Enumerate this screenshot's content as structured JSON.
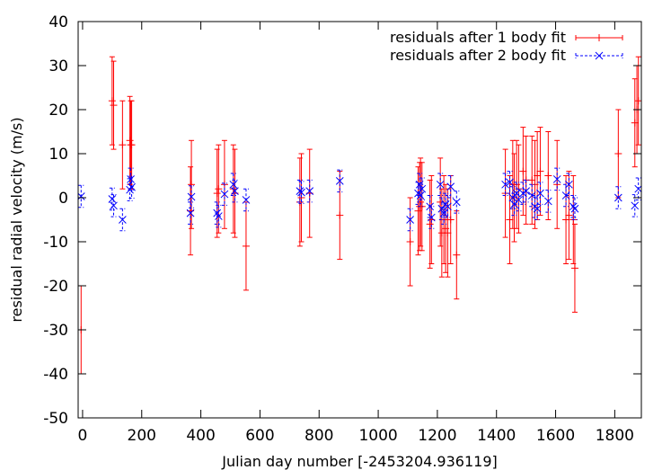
{
  "chart_data": {
    "type": "scatter",
    "title": "",
    "xlabel": "Julian day number [-2453204.936119]",
    "ylabel": "residual radial velocity (m/s)",
    "xlim": [
      -15,
      1890
    ],
    "ylim": [
      -50,
      40
    ],
    "xticks": [
      0,
      200,
      400,
      600,
      800,
      1000,
      1200,
      1400,
      1600,
      1800
    ],
    "yticks": [
      -50,
      -40,
      -30,
      -20,
      -10,
      0,
      10,
      20,
      30,
      40
    ],
    "grid": false,
    "legend_position": "top-right",
    "colors": {
      "series1": "#ff0000",
      "series2": "#0000ff",
      "axes": "#000000"
    },
    "series": [
      {
        "name": "residuals after 1 body fit",
        "marker": "+",
        "line_style": "solid",
        "points": [
          {
            "x": -5,
            "y": -30,
            "err": 10
          },
          {
            "x": 100,
            "y": 22,
            "err": 10
          },
          {
            "x": 105,
            "y": 21,
            "err": 10
          },
          {
            "x": 135,
            "y": 12,
            "err": 10
          },
          {
            "x": 160,
            "y": 13,
            "err": 10
          },
          {
            "x": 163,
            "y": 12,
            "err": 10
          },
          {
            "x": 166,
            "y": 12,
            "err": 10
          },
          {
            "x": 365,
            "y": -3,
            "err": 10
          },
          {
            "x": 368,
            "y": 3,
            "err": 10
          },
          {
            "x": 455,
            "y": 1,
            "err": 10
          },
          {
            "x": 460,
            "y": 2,
            "err": 10
          },
          {
            "x": 480,
            "y": 3,
            "err": 10
          },
          {
            "x": 510,
            "y": 2,
            "err": 10
          },
          {
            "x": 515,
            "y": 1,
            "err": 10
          },
          {
            "x": 553,
            "y": -11,
            "err": 10
          },
          {
            "x": 735,
            "y": -1,
            "err": 10
          },
          {
            "x": 740,
            "y": 0,
            "err": 10
          },
          {
            "x": 768,
            "y": 1,
            "err": 10
          },
          {
            "x": 870,
            "y": -4,
            "err": 10
          },
          {
            "x": 1108,
            "y": -10,
            "err": 10
          },
          {
            "x": 1135,
            "y": -3,
            "err": 10
          },
          {
            "x": 1140,
            "y": -2,
            "err": 10
          },
          {
            "x": 1143,
            "y": -1,
            "err": 10
          },
          {
            "x": 1148,
            "y": -2,
            "err": 10
          },
          {
            "x": 1175,
            "y": -6,
            "err": 10
          },
          {
            "x": 1180,
            "y": -5,
            "err": 10
          },
          {
            "x": 1210,
            "y": -1,
            "err": 10
          },
          {
            "x": 1215,
            "y": -8,
            "err": 10
          },
          {
            "x": 1222,
            "y": -5,
            "err": 10
          },
          {
            "x": 1228,
            "y": -7,
            "err": 10
          },
          {
            "x": 1235,
            "y": -8,
            "err": 10
          },
          {
            "x": 1245,
            "y": -5,
            "err": 10
          },
          {
            "x": 1265,
            "y": -13,
            "err": 10
          },
          {
            "x": 1430,
            "y": 1,
            "err": 10
          },
          {
            "x": 1445,
            "y": -5,
            "err": 10
          },
          {
            "x": 1455,
            "y": 3,
            "err": 10
          },
          {
            "x": 1460,
            "y": 0,
            "err": 10
          },
          {
            "x": 1468,
            "y": 3,
            "err": 10
          },
          {
            "x": 1475,
            "y": 2,
            "err": 10
          },
          {
            "x": 1490,
            "y": 6,
            "err": 10
          },
          {
            "x": 1500,
            "y": 4,
            "err": 10
          },
          {
            "x": 1520,
            "y": 4,
            "err": 10
          },
          {
            "x": 1530,
            "y": 3,
            "err": 10
          },
          {
            "x": 1538,
            "y": 5,
            "err": 10
          },
          {
            "x": 1548,
            "y": 6,
            "err": 10
          },
          {
            "x": 1575,
            "y": 5,
            "err": 10
          },
          {
            "x": 1605,
            "y": 3,
            "err": 10
          },
          {
            "x": 1635,
            "y": -5,
            "err": 10
          },
          {
            "x": 1645,
            "y": -4,
            "err": 10
          },
          {
            "x": 1660,
            "y": -5,
            "err": 10
          },
          {
            "x": 1665,
            "y": -16,
            "err": 10
          },
          {
            "x": 1812,
            "y": 10,
            "err": 10
          },
          {
            "x": 1868,
            "y": 17,
            "err": 10
          },
          {
            "x": 1875,
            "y": 20,
            "err": 10
          },
          {
            "x": 1880,
            "y": 22,
            "err": 10
          }
        ]
      },
      {
        "name": "residuals after 2 body fit",
        "marker": "x",
        "line_style": "dashed",
        "points": [
          {
            "x": -5,
            "y": 0.3,
            "err": 2.5
          },
          {
            "x": 100,
            "y": -0.3,
            "err": 2.5
          },
          {
            "x": 105,
            "y": -1.8,
            "err": 2.5
          },
          {
            "x": 135,
            "y": -5,
            "err": 2.5
          },
          {
            "x": 160,
            "y": 1.8,
            "err": 2.5
          },
          {
            "x": 163,
            "y": 4.2,
            "err": 2.5
          },
          {
            "x": 166,
            "y": 2.4,
            "err": 2.5
          },
          {
            "x": 365,
            "y": -3.5,
            "err": 2.5
          },
          {
            "x": 368,
            "y": 0.2,
            "err": 2.5
          },
          {
            "x": 455,
            "y": -3.5,
            "err": 2.5
          },
          {
            "x": 460,
            "y": -4.2,
            "err": 2.5
          },
          {
            "x": 480,
            "y": 0.8,
            "err": 2.5
          },
          {
            "x": 510,
            "y": 3,
            "err": 2.5
          },
          {
            "x": 515,
            "y": 1.5,
            "err": 2.5
          },
          {
            "x": 553,
            "y": -0.5,
            "err": 2.5
          },
          {
            "x": 735,
            "y": 1.5,
            "err": 2.5
          },
          {
            "x": 740,
            "y": 1.2,
            "err": 2.5
          },
          {
            "x": 768,
            "y": 1.5,
            "err": 2.5
          },
          {
            "x": 870,
            "y": 3.8,
            "err": 2.5
          },
          {
            "x": 1108,
            "y": -5,
            "err": 2.5
          },
          {
            "x": 1135,
            "y": 1,
            "err": 2.5
          },
          {
            "x": 1140,
            "y": 3,
            "err": 2.5
          },
          {
            "x": 1143,
            "y": 0.5,
            "err": 2.5
          },
          {
            "x": 1148,
            "y": 2,
            "err": 2.5
          },
          {
            "x": 1175,
            "y": -2,
            "err": 2.5
          },
          {
            "x": 1180,
            "y": -4.5,
            "err": 2.5
          },
          {
            "x": 1210,
            "y": 3,
            "err": 2.5
          },
          {
            "x": 1215,
            "y": -2.5,
            "err": 2.5
          },
          {
            "x": 1222,
            "y": -3.5,
            "err": 2.5
          },
          {
            "x": 1228,
            "y": -1.5,
            "err": 2.5
          },
          {
            "x": 1235,
            "y": -2,
            "err": 2.5
          },
          {
            "x": 1245,
            "y": 2.5,
            "err": 2.5
          },
          {
            "x": 1265,
            "y": -1,
            "err": 2.5
          },
          {
            "x": 1430,
            "y": 3,
            "err": 2.5
          },
          {
            "x": 1445,
            "y": 3.5,
            "err": 2.5
          },
          {
            "x": 1455,
            "y": 0,
            "err": 2.5
          },
          {
            "x": 1460,
            "y": -1.5,
            "err": 2.5
          },
          {
            "x": 1468,
            "y": 1,
            "err": 2.5
          },
          {
            "x": 1475,
            "y": -0.5,
            "err": 2.5
          },
          {
            "x": 1490,
            "y": 1,
            "err": 2.5
          },
          {
            "x": 1500,
            "y": 1.5,
            "err": 2.5
          },
          {
            "x": 1520,
            "y": 0.5,
            "err": 2.5
          },
          {
            "x": 1530,
            "y": -2,
            "err": 2.5
          },
          {
            "x": 1538,
            "y": -2.5,
            "err": 2.5
          },
          {
            "x": 1548,
            "y": 1,
            "err": 2.5
          },
          {
            "x": 1575,
            "y": -0.8,
            "err": 2.5
          },
          {
            "x": 1605,
            "y": 4.2,
            "err": 2.5
          },
          {
            "x": 1635,
            "y": 0.5,
            "err": 2.5
          },
          {
            "x": 1645,
            "y": 3,
            "err": 2.5
          },
          {
            "x": 1660,
            "y": -2,
            "err": 2.5
          },
          {
            "x": 1665,
            "y": -2.5,
            "err": 2.5
          },
          {
            "x": 1812,
            "y": 0,
            "err": 2.5
          },
          {
            "x": 1868,
            "y": -1.8,
            "err": 2.5
          },
          {
            "x": 1880,
            "y": 2,
            "err": 2.5
          }
        ]
      }
    ]
  }
}
